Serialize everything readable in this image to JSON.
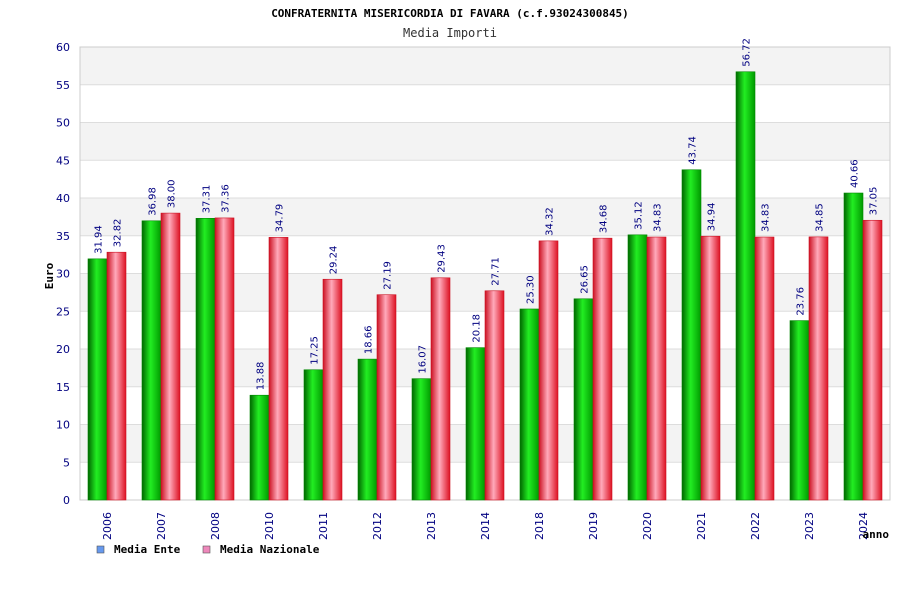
{
  "chart_data": {
    "type": "bar",
    "title": "CONFRATERNITA MISERICORDIA DI FAVARA (c.f.93024300845)",
    "subtitle": "Media Importi",
    "ylabel": "Euro",
    "xlabel": "anno",
    "ylim": [
      0,
      60
    ],
    "yticks": [
      0,
      5,
      10,
      15,
      20,
      25,
      30,
      35,
      40,
      45,
      50,
      55,
      60
    ],
    "grid": true,
    "legend_position": "bottom-left",
    "categories": [
      "2006",
      "2007",
      "2008",
      "2010",
      "2011",
      "2012",
      "2013",
      "2014",
      "2018",
      "2019",
      "2020",
      "2021",
      "2022",
      "2023",
      "2024"
    ],
    "series": [
      {
        "name": "Media Ente",
        "color": "#00bb00",
        "legend_color": "#6699ee",
        "values": [
          31.94,
          36.98,
          37.31,
          13.88,
          17.25,
          18.66,
          16.07,
          20.18,
          25.3,
          26.65,
          35.12,
          43.74,
          56.72,
          23.76,
          40.66
        ],
        "labels": [
          "31.94",
          "36.98",
          "37.31",
          "13.88",
          "17.25",
          "18.66",
          "16.07",
          "20.18",
          "25.30",
          "26.65",
          "35.12",
          "43.74",
          "56.72",
          "23.76",
          "40.66"
        ]
      },
      {
        "name": "Media Nazionale",
        "color": "#ee2233",
        "legend_color": "#ee88bb",
        "values": [
          32.82,
          38.0,
          37.36,
          34.79,
          29.24,
          27.19,
          29.43,
          27.71,
          34.32,
          34.68,
          34.83,
          34.94,
          34.83,
          34.85,
          37.05
        ],
        "labels": [
          "32.82",
          "38.00",
          "37.36",
          "34.79",
          "29.24",
          "27.19",
          "29.43",
          "27.71",
          "34.32",
          "34.68",
          "34.83",
          "34.94",
          "34.83",
          "34.85",
          "37.05"
        ]
      }
    ]
  }
}
